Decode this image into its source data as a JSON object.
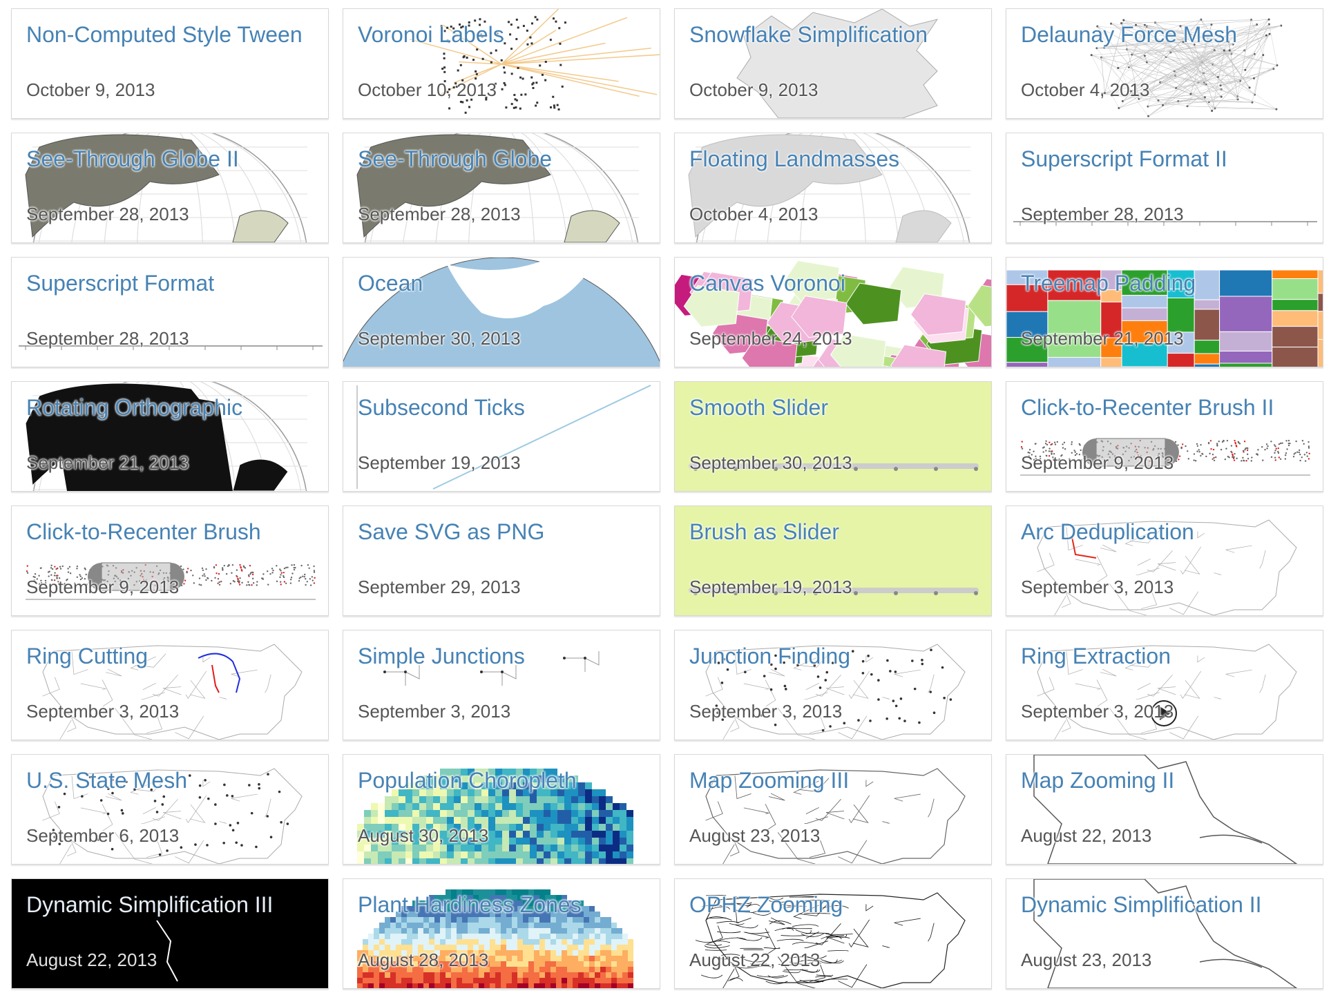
{
  "gallery": {
    "items": [
      {
        "title": "Non-Computed Style Tween",
        "date": "October 9, 2013",
        "thumb": "blank"
      },
      {
        "title": "Voronoi Labels",
        "date": "October 10, 2013",
        "thumb": "voronoi-labels"
      },
      {
        "title": "Snowflake Simplification",
        "date": "October 9, 2013",
        "thumb": "snowflake"
      },
      {
        "title": "Delaunay Force Mesh",
        "date": "October 4, 2013",
        "thumb": "mesh"
      },
      {
        "title": "See-Through Globe II",
        "date": "September 28, 2013",
        "thumb": "globe-gray"
      },
      {
        "title": "See-Through Globe",
        "date": "September 28, 2013",
        "thumb": "globe-gray"
      },
      {
        "title": "Floating Landmasses",
        "date": "October 4, 2013",
        "thumb": "globe-light"
      },
      {
        "title": "Superscript Format II",
        "date": "September 28, 2013",
        "thumb": "axis-line"
      },
      {
        "title": "Superscript Format",
        "date": "September 28, 2013",
        "thumb": "axis-line"
      },
      {
        "title": "Ocean",
        "date": "September 30, 2013",
        "thumb": "ocean"
      },
      {
        "title": "Canvas Voronoi",
        "date": "September 24, 2013",
        "thumb": "canvas-voronoi"
      },
      {
        "title": "Treemap Padding",
        "date": "September 21, 2013",
        "thumb": "treemap"
      },
      {
        "title": "Rotating Orthographic",
        "date": "September 21, 2013",
        "thumb": "globe-black"
      },
      {
        "title": "Subsecond Ticks",
        "date": "September 19, 2013",
        "thumb": "subsecond"
      },
      {
        "title": "Smooth Slider",
        "date": "September 30, 2013",
        "thumb": "slider-green"
      },
      {
        "title": "Click-to-Recenter Brush II",
        "date": "September 9, 2013",
        "thumb": "brush"
      },
      {
        "title": "Click-to-Recenter Brush",
        "date": "September 9, 2013",
        "thumb": "brush"
      },
      {
        "title": "Save SVG as PNG",
        "date": "September 29, 2013",
        "thumb": "blank"
      },
      {
        "title": "Brush as Slider",
        "date": "September 19, 2013",
        "thumb": "slider-green"
      },
      {
        "title": "Arc Deduplication",
        "date": "September 3, 2013",
        "thumb": "us-arc"
      },
      {
        "title": "Ring Cutting",
        "date": "September 3, 2013",
        "thumb": "us-ring"
      },
      {
        "title": "Simple Junctions",
        "date": "September 3, 2013",
        "thumb": "junctions"
      },
      {
        "title": "Junction Finding",
        "date": "September 3, 2013",
        "thumb": "us-dots"
      },
      {
        "title": "Ring Extraction",
        "date": "September 3, 2013",
        "thumb": "us-play"
      },
      {
        "title": "U.S. State Mesh",
        "date": "September 6, 2013",
        "thumb": "us-dots"
      },
      {
        "title": "Population Choropleth",
        "date": "August 30, 2013",
        "thumb": "us-choropleth"
      },
      {
        "title": "Map Zooming III",
        "date": "August 23, 2013",
        "thumb": "us-zoom"
      },
      {
        "title": "Map Zooming II",
        "date": "August 22, 2013",
        "thumb": "ne-zoom"
      },
      {
        "title": "Dynamic Simplification III",
        "date": "August 22, 2013",
        "thumb": "black-coast"
      },
      {
        "title": "Plant Hardiness Zones",
        "date": "August 28, 2013",
        "thumb": "us-hardiness"
      },
      {
        "title": "OPHZ Zooming",
        "date": "August 22, 2013",
        "thumb": "us-contours"
      },
      {
        "title": "Dynamic Simplification II",
        "date": "August 23, 2013",
        "thumb": "ne-zoom"
      }
    ]
  },
  "colors": {
    "link": "#4682b4",
    "date": "#555555",
    "slider_bg": "#e5f4a6",
    "ocean": "#9ec4df",
    "land_gray": "#7a7a6e",
    "land_tan": "#d5d8bf"
  }
}
